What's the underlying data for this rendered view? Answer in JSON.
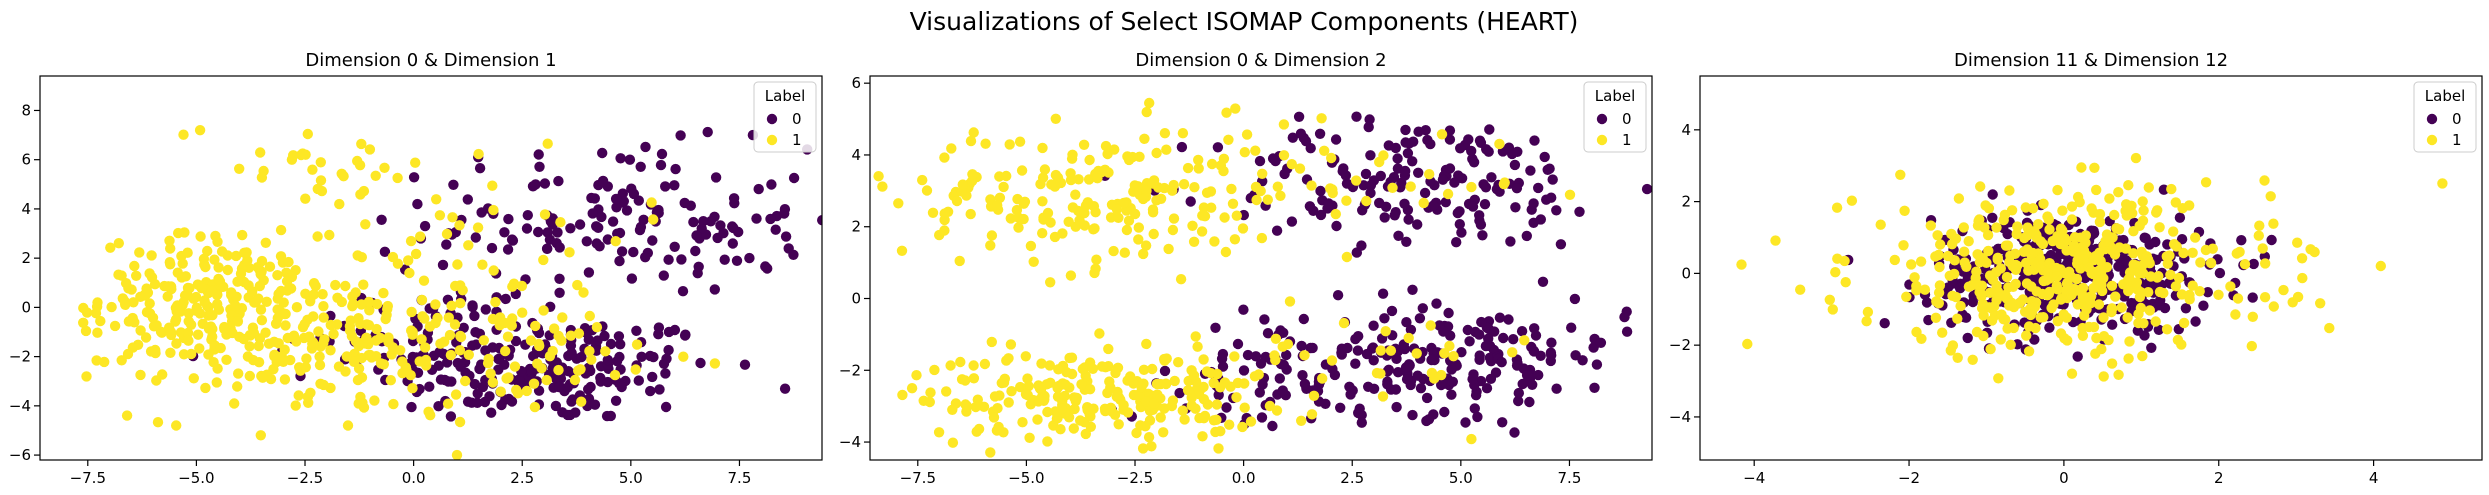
{
  "figure": {
    "title": "Visualizations of Select ISOMAP Components (HEART)"
  },
  "colors": {
    "label_0": "#440154",
    "label_1": "#fde725"
  },
  "chart_data": [
    {
      "type": "scatter",
      "title": "Dimension 0 & Dimension 1",
      "xlim": [
        -8.6,
        9.4
      ],
      "ylim": [
        -6.2,
        9.4
      ],
      "xticks": [
        -7.5,
        -5.0,
        -2.5,
        0.0,
        2.5,
        5.0,
        7.5
      ],
      "xtick_labels": [
        "−7.5",
        "−5.0",
        "−2.5",
        "0.0",
        "2.5",
        "5.0",
        "7.5"
      ],
      "yticks": [
        -6,
        -4,
        -2,
        0,
        2,
        4,
        6,
        8
      ],
      "ytick_labels": [
        "−6",
        "−4",
        "−2",
        "0",
        "2",
        "4",
        "6",
        "8"
      ],
      "legend": {
        "title": "Label",
        "entries": [
          "0",
          "1"
        ],
        "position": "top-right"
      },
      "series": [
        {
          "name": "0",
          "color": "#440154",
          "clusters": [
            {
              "cx": 3.0,
              "cy": -2.5,
              "sx": 2.0,
              "sy": 1.1,
              "n": 200
            },
            {
              "cx": 4.8,
              "cy": 3.5,
              "sx": 2.2,
              "sy": 1.5,
              "n": 160
            },
            {
              "cx": 0.0,
              "cy": -1.0,
              "sx": 1.6,
              "sy": 1.0,
              "n": 50
            }
          ]
        },
        {
          "name": "1",
          "color": "#fde725",
          "clusters": [
            {
              "cx": -4.8,
              "cy": 0.3,
              "sx": 1.2,
              "sy": 1.3,
              "n": 200
            },
            {
              "cx": -2.0,
              "cy": -1.5,
              "sx": 2.2,
              "sy": 1.5,
              "n": 220
            },
            {
              "cx": -2.5,
              "cy": 6.0,
              "sx": 1.5,
              "sy": 1.0,
              "n": 30
            },
            {
              "cx": 1.5,
              "cy": 3.0,
              "sx": 1.8,
              "sy": 2.0,
              "n": 40
            },
            {
              "cx": 2.5,
              "cy": -2.0,
              "sx": 2.0,
              "sy": 1.2,
              "n": 60
            }
          ]
        }
      ]
    },
    {
      "type": "scatter",
      "title": "Dimension 0 & Dimension 2",
      "xlim": [
        -8.6,
        9.4
      ],
      "ylim": [
        -4.5,
        6.2
      ],
      "xticks": [
        -7.5,
        -5.0,
        -2.5,
        0.0,
        2.5,
        5.0,
        7.5
      ],
      "xtick_labels": [
        "−7.5",
        "−5.0",
        "−2.5",
        "0.0",
        "2.5",
        "5.0",
        "7.5"
      ],
      "yticks": [
        -4,
        -2,
        0,
        2,
        4,
        6
      ],
      "ytick_labels": [
        "−4",
        "−2",
        "0",
        "2",
        "4",
        "6"
      ],
      "legend": {
        "title": "Label",
        "entries": [
          "0",
          "1"
        ],
        "position": "top-right"
      },
      "series": [
        {
          "name": "0",
          "color": "#440154",
          "clusters": [
            {
              "cx": 4.0,
              "cy": 3.2,
              "sx": 2.3,
              "sy": 0.9,
              "n": 170
            },
            {
              "cx": 4.5,
              "cy": -1.6,
              "sx": 2.2,
              "sy": 0.8,
              "n": 200
            },
            {
              "cx": 0.5,
              "cy": -2.4,
              "sx": 1.8,
              "sy": 0.6,
              "n": 50
            }
          ]
        },
        {
          "name": "1",
          "color": "#fde725",
          "clusters": [
            {
              "cx": -3.5,
              "cy": 2.8,
              "sx": 2.2,
              "sy": 1.0,
              "n": 200
            },
            {
              "cx": -3.5,
              "cy": -2.7,
              "sx": 2.0,
              "sy": 0.6,
              "n": 230
            },
            {
              "cx": 2.0,
              "cy": 3.5,
              "sx": 2.5,
              "sy": 1.0,
              "n": 40
            },
            {
              "cx": 2.0,
              "cy": -1.8,
              "sx": 2.5,
              "sy": 0.8,
              "n": 40
            }
          ]
        }
      ]
    },
    {
      "type": "scatter",
      "title": "Dimension 11 & Dimension 12",
      "xlim": [
        -4.7,
        5.4
      ],
      "ylim": [
        -5.2,
        5.5
      ],
      "xticks": [
        -4,
        -2,
        0,
        2,
        4
      ],
      "xtick_labels": [
        "−4",
        "−2",
        "0",
        "2",
        "4"
      ],
      "yticks": [
        -4,
        -2,
        0,
        2,
        4
      ],
      "ytick_labels": [
        "−4",
        "−2",
        "0",
        "2",
        "4"
      ],
      "legend": {
        "title": "Label",
        "entries": [
          "0",
          "1"
        ],
        "position": "top-right"
      },
      "series": [
        {
          "name": "0",
          "color": "#440154",
          "clusters": [
            {
              "cx": 0.1,
              "cy": 0.0,
              "sx": 0.9,
              "sy": 0.8,
              "n": 420
            }
          ]
        },
        {
          "name": "1",
          "color": "#fde725",
          "clusters": [
            {
              "cx": 0.0,
              "cy": 0.0,
              "sx": 1.35,
              "sy": 1.15,
              "n": 450
            }
          ]
        }
      ]
    }
  ]
}
